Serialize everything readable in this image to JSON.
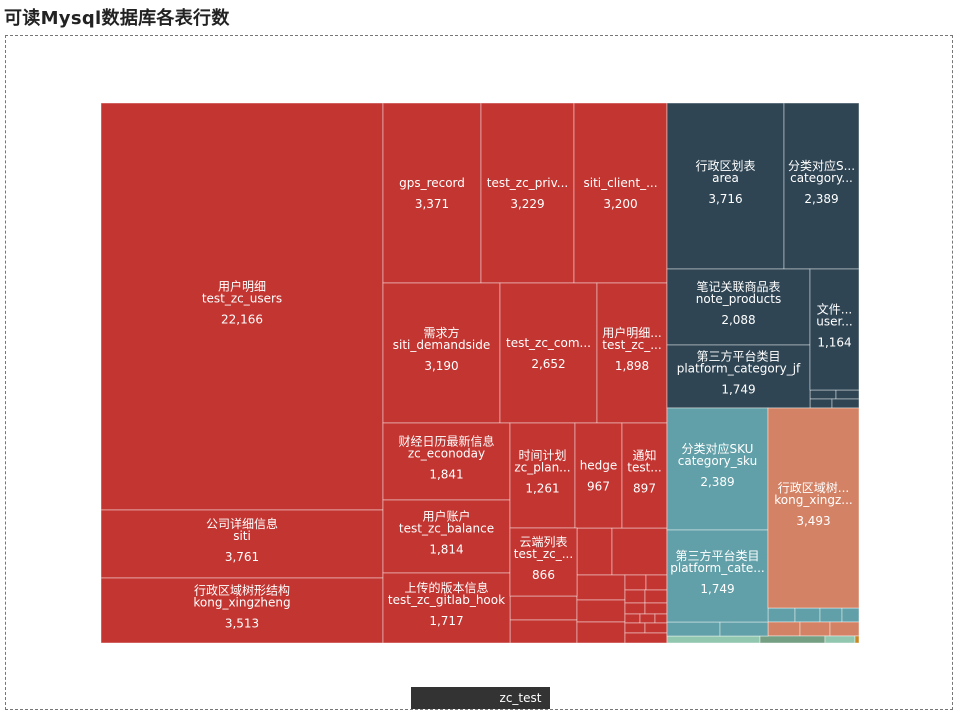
{
  "page": {
    "title": "可读Mysql数据库各表行数"
  },
  "breadcrumb": {
    "root_label": "",
    "current_label": "zc_test"
  },
  "colors": {
    "red": "#c23531",
    "navy": "#2f4554",
    "teal": "#61a0a8",
    "salmon": "#d48265",
    "green": "#91c7ae",
    "olive": "#749f83",
    "orange": "#ca8622"
  },
  "chart_data": {
    "type": "treemap",
    "root": "zc_test",
    "groups": [
      {
        "color": "red",
        "items": [
          {
            "name": "用户明细",
            "table": "test_zc_users",
            "value": 22166,
            "value_label": "22,166"
          },
          {
            "name": "公司详细信息",
            "table": "siti",
            "value": 3761,
            "value_label": "3,761"
          },
          {
            "name": "行政区域树形结构",
            "table": "kong_xingzheng",
            "value": 3513,
            "value_label": "3,513"
          },
          {
            "name": "",
            "table": "gps_record",
            "value": 3371,
            "value_label": "3,371"
          },
          {
            "name": "",
            "table": "test_zc_priv...",
            "value": 3229,
            "value_label": "3,229"
          },
          {
            "name": "",
            "table": "siti_client_...",
            "value": 3200,
            "value_label": "3,200"
          },
          {
            "name": "需求方",
            "table": "siti_demandside",
            "value": 3190,
            "value_label": "3,190"
          },
          {
            "name": "",
            "table": "test_zc_com...",
            "value": 2652,
            "value_label": "2,652"
          },
          {
            "name": "用户明细...",
            "table": "test_zc_...",
            "value": 1898,
            "value_label": "1,898"
          },
          {
            "name": "财经日历最新信息",
            "table": "zc_econoday",
            "value": 1841,
            "value_label": "1,841"
          },
          {
            "name": "用户账户",
            "table": "test_zc_balance",
            "value": 1814,
            "value_label": "1,814"
          },
          {
            "name": "上传的版本信息",
            "table": "test_zc_gitlab_hook",
            "value": 1717,
            "value_label": "1,717"
          },
          {
            "name": "时间计划",
            "table": "zc_plan...",
            "value": 1261,
            "value_label": "1,261"
          },
          {
            "name": "",
            "table": "hedge",
            "value": 967,
            "value_label": "967"
          },
          {
            "name": "通知",
            "table": "test...",
            "value": 897,
            "value_label": "897"
          },
          {
            "name": "云端列表",
            "table": "test_zc_...",
            "value": 866,
            "value_label": "866"
          }
        ]
      },
      {
        "color": "navy",
        "items": [
          {
            "name": "行政区划表",
            "table": "area",
            "value": 3716,
            "value_label": "3,716"
          },
          {
            "name": "分类对应S...",
            "table": "category...",
            "value": 2389,
            "value_label": "2,389"
          },
          {
            "name": "笔记关联商品表",
            "table": "note_products",
            "value": 2088,
            "value_label": "2,088"
          },
          {
            "name": "第三方平台类目",
            "table": "platform_category_jf",
            "value": 1749,
            "value_label": "1,749"
          },
          {
            "name": "文件...",
            "table": "user...",
            "value": 1164,
            "value_label": "1,164"
          }
        ]
      },
      {
        "color": "teal",
        "items": [
          {
            "name": "分类对应SKU",
            "table": "category_sku",
            "value": 2389,
            "value_label": "2,389"
          },
          {
            "name": "第三方平台类目",
            "table": "platform_cate...",
            "value": 1749,
            "value_label": "1,749"
          }
        ]
      },
      {
        "color": "salmon",
        "items": [
          {
            "name": "行政区域树...",
            "table": "kong_xingz...",
            "value": 3493,
            "value_label": "3,493"
          }
        ]
      }
    ]
  }
}
